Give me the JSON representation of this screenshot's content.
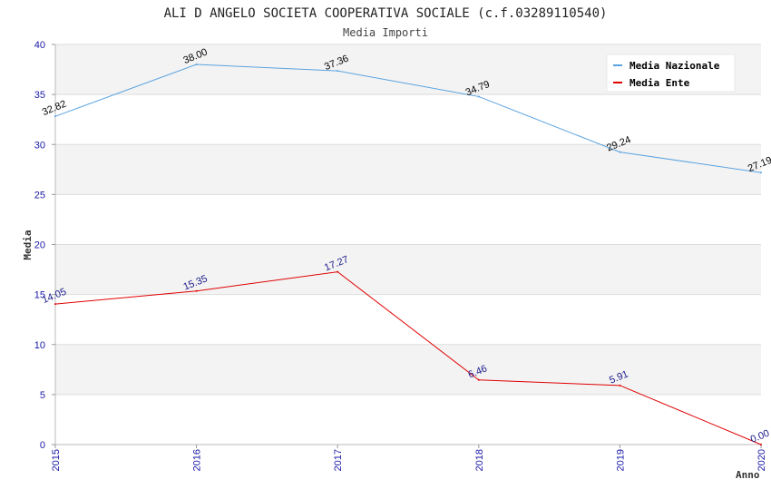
{
  "chart_data": {
    "type": "line",
    "title": "ALI D ANGELO SOCIETA COOPERATIVA SOCIALE (c.f.03289110540)",
    "subtitle": "Media Importi",
    "xlabel": "Anno",
    "ylabel": "Media",
    "x": [
      "2015",
      "2016",
      "2017",
      "2018",
      "2019",
      "2020"
    ],
    "ylim": [
      0,
      40
    ],
    "yticks": [
      "0",
      "5",
      "10",
      "15",
      "20",
      "25",
      "30",
      "35",
      "40"
    ],
    "grid": true,
    "legend_position": "top-right",
    "series": [
      {
        "name": "Media Nazionale",
        "color": "#5ba3e0",
        "label_color": "#000000",
        "values": [
          32.82,
          38.0,
          37.36,
          34.79,
          29.24,
          27.19
        ],
        "labels": [
          "32.82",
          "38.00",
          "37.36",
          "34.79",
          "29.24",
          "27.19"
        ]
      },
      {
        "name": "Media Ente",
        "color": "#e00000",
        "label_color": "#1a1a8c",
        "values": [
          14.05,
          15.35,
          17.27,
          6.46,
          5.91,
          0.0
        ],
        "labels": [
          "14.05",
          "15.35",
          "17.27",
          "6.46",
          "5.91",
          "0.00"
        ]
      }
    ]
  }
}
